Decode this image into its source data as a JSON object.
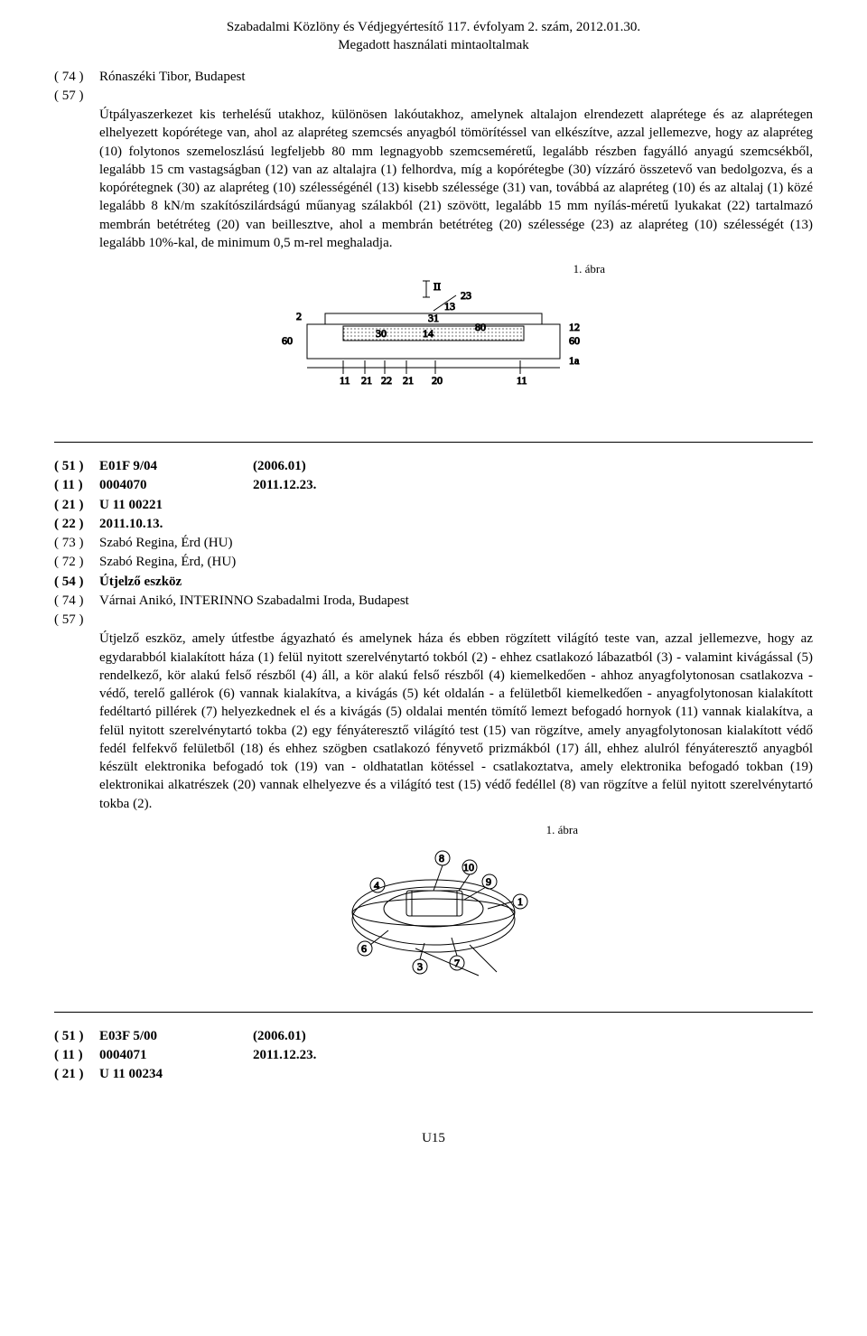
{
  "header": {
    "line1": "Szabadalmi Közlöny és Védjegyértesítő 117. évfolyam 2. szám, 2012.01.30.",
    "line2": "Megadott használati mintaoltalmak"
  },
  "record1": {
    "code74": "( 74 )",
    "val74": "Rónaszéki Tibor, Budapest",
    "code57": "( 57 )",
    "abstract": "Útpályaszerkezet kis terhelésű utakhoz, különösen lakóutakhoz, amelynek altalajon elrendezett alaprétege és az alaprétegen elhelyezett kopórétege van, ahol az alapréteg szemcsés anyagból tömörítéssel van elkészítve, azzal jellemezve, hogy az alapréteg (10) folytonos szemeloszlású legfeljebb 80 mm legnagyobb szemcseméretű, legalább részben fagyálló anyagú szemcsékből, legalább 15 cm vastagságban (12) van az altalajra (1) felhordva, míg a kopórétegbe (30) vízzáró összetevő van bedolgozva, és a kopórétegnek (30) az alapréteg (10) szélességénél (13) kisebb szélessége (31) van, továbbá az alapréteg (10) és az altalaj (1) közé legalább 8 kN/m szakítószilárdságú műanyag szálakból (21) szövött, legalább 15 mm nyílás-méretű lyukakat (22) tartalmazó membrán betétréteg (20) van beillesztve, ahol a membrán betétréteg (20) szélessége (23) az alapréteg (10) szélességét (13) legalább 10%-kal, de minimum 0,5 m-rel meghaladja."
  },
  "figure1": {
    "caption": "1. ábra",
    "labels": [
      "II",
      "2",
      "60",
      "23",
      "13",
      "31",
      "30",
      "14",
      "80",
      "60",
      "12",
      "1a",
      "11",
      "21",
      "22",
      "21",
      "20",
      "11"
    ]
  },
  "record2": {
    "rows": [
      {
        "code": "( 51 )",
        "c1": "E01F 9/04",
        "c2": "(2006.01)",
        "bold": true
      },
      {
        "code": "( 11 )",
        "c1": "0004070",
        "c2": "2011.12.23.",
        "bold": true
      },
      {
        "code": "( 21 )",
        "c1": "U 11 00221",
        "c2": "",
        "bold": true
      },
      {
        "code": "( 22 )",
        "c1": "2011.10.13.",
        "c2": "",
        "bold": true
      },
      {
        "code": "( 73 )",
        "c1": "Szabó Regina, Érd (HU)",
        "c2": "",
        "bold": false
      },
      {
        "code": "( 72 )",
        "c1": "Szabó Regina, Érd, (HU)",
        "c2": "",
        "bold": false
      },
      {
        "code": "( 54 )",
        "c1": "Útjelző eszköz",
        "c2": "",
        "bold": true
      },
      {
        "code": "( 74 )",
        "c1": "Várnai Anikó, INTERINNO Szabadalmi Iroda, Budapest",
        "c2": "",
        "bold": false
      }
    ],
    "code57": "( 57 )",
    "abstract": "Útjelző eszköz, amely útfestbe ágyazható és amelynek háza és ebben rögzített világító teste van, azzal jellemezve, hogy az egydarabból kialakított háza (1) felül nyitott szerelvénytartó tokból (2) - ehhez csatlakozó lábazatból (3) - valamint kivágással (5) rendelkező, kör alakú felső részből (4) áll, a kör alakú felső részből (4) kiemelkedően - ahhoz anyagfolytonosan csatlakozva - védő, terelő gallérok (6) vannak kialakítva, a kivágás (5) két oldalán - a felületből kiemelkedően - anyagfolytonosan kialakított fedéltartó pillérek (7) helyezkednek el és a kivágás (5) oldalai mentén tömítő lemezt befogadó hornyok (11) vannak kialakítva, a felül nyitott szerelvénytartó tokba (2) egy fényáteresztő világító test (15) van rögzítve, amely anyagfolytonosan kialakított védő fedél felfekvő felületből (18) és ehhez szögben csatlakozó fényvető prizmákból (17) áll, ehhez alulról fényáteresztő anyagból készült elektronika befogadó tok (19) van - oldhatatlan kötéssel - csatlakoztatva, amely elektronika befogadó tokban (19) elektronikai alkatrészek (20) vannak elhelyezve és a világító test (15) védő fedéllel (8) van rögzítve a felül nyitott szerelvénytartó tokba (2)."
  },
  "figure2": {
    "caption": "1. ábra",
    "labels": [
      "8",
      "10",
      "4",
      "9",
      "1",
      "6",
      "3",
      "7"
    ]
  },
  "record3": {
    "rows": [
      {
        "code": "( 51 )",
        "c1": "E03F 5/00",
        "c2": "(2006.01)",
        "bold": true
      },
      {
        "code": "( 11 )",
        "c1": "0004071",
        "c2": "2011.12.23.",
        "bold": true
      },
      {
        "code": "( 21 )",
        "c1": "U 11 00234",
        "c2": "",
        "bold": true
      }
    ]
  },
  "footer": {
    "pageNum": "U15"
  }
}
